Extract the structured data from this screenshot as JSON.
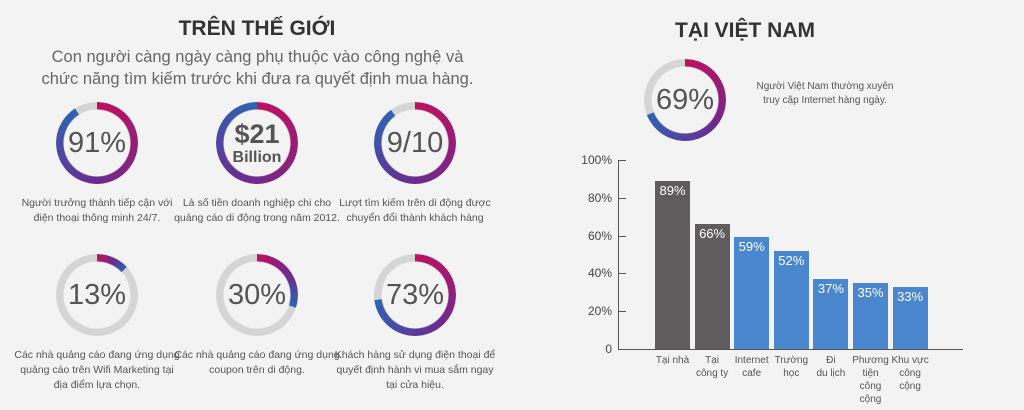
{
  "world": {
    "title": "TRÊN THẾ GIỚI",
    "subtitle_line1": "Con người càng ngày càng phụ thuộc vào công nghệ và",
    "subtitle_line2": "chức năng tìm kiếm trước khi đưa ra quyết định mua hàng.",
    "stats": [
      {
        "value": "91%",
        "fill": 91,
        "caption": "Người trưởng thành tiếp cận với điện thoại thông minh 24/7."
      },
      {
        "value": "$21",
        "value_sub": "Billion",
        "fill": 100,
        "caption": "Là số tiền doanh nghiệp chi cho quảng cáo di động trong năm 2012."
      },
      {
        "value": "9/10",
        "fill": 90,
        "caption": "Lượt tìm kiếm trên di động được chuyển đổi thành khách hàng"
      },
      {
        "value": "13%",
        "fill": 13,
        "caption": "Các nhà quảng cáo đang ứng dụng quảng cáo trên Wifi Marketing tại địa điểm lựa chọn."
      },
      {
        "value": "30%",
        "fill": 30,
        "caption": "Các nhà quảng cáo đang ứng dụng coupon trên di động."
      },
      {
        "value": "73%",
        "fill": 73,
        "caption": "Khách hàng sử dụng điện thoại để quyết định hành vi mua sắm ngay tại cửa hiệu."
      }
    ]
  },
  "vietnam": {
    "title": "TẠI VIỆT NAM",
    "stat": {
      "value": "69%",
      "fill": 69,
      "caption_line1": "Người Việt Nam thường xuyên",
      "caption_line2": "truy cập Internet hàng ngày."
    }
  },
  "colors": {
    "ring_start": "#c0105e",
    "ring_mid": "#6b2c8e",
    "ring_end": "#2f64b4",
    "ring_track": "#d5d5d5",
    "bar_dark": "#5e5c5d",
    "bar_blue": "#4b87cf"
  },
  "chart_data": {
    "type": "bar",
    "categories": [
      "Tại nhà",
      "Tại công ty",
      "Internet cafe",
      "Trường học",
      "Đi du lịch",
      "Phương tiện công cộng",
      "Khu vực công cộng"
    ],
    "category_lines": [
      [
        "Tại nhà"
      ],
      [
        "Tại",
        "công ty"
      ],
      [
        "Internet",
        "cafe"
      ],
      [
        "Trường",
        "học"
      ],
      [
        "Đi",
        "du lịch"
      ],
      [
        "Phương",
        "tiện",
        "công",
        "cộng"
      ],
      [
        "Khu vực",
        "công",
        "cộng"
      ]
    ],
    "values": [
      89,
      66,
      59,
      52,
      37,
      35,
      33
    ],
    "data_labels": [
      "89%",
      "66%",
      "59%",
      "52%",
      "37%",
      "35%",
      "33%"
    ],
    "bar_colors": [
      "#5e5c5d",
      "#5e5c5d",
      "#4b87cf",
      "#4b87cf",
      "#4b87cf",
      "#4b87cf",
      "#4b87cf"
    ],
    "yticks": [
      "0",
      "20%",
      "40%",
      "60%",
      "80%",
      "100%"
    ],
    "ylim": [
      0,
      100
    ],
    "grid": false
  }
}
